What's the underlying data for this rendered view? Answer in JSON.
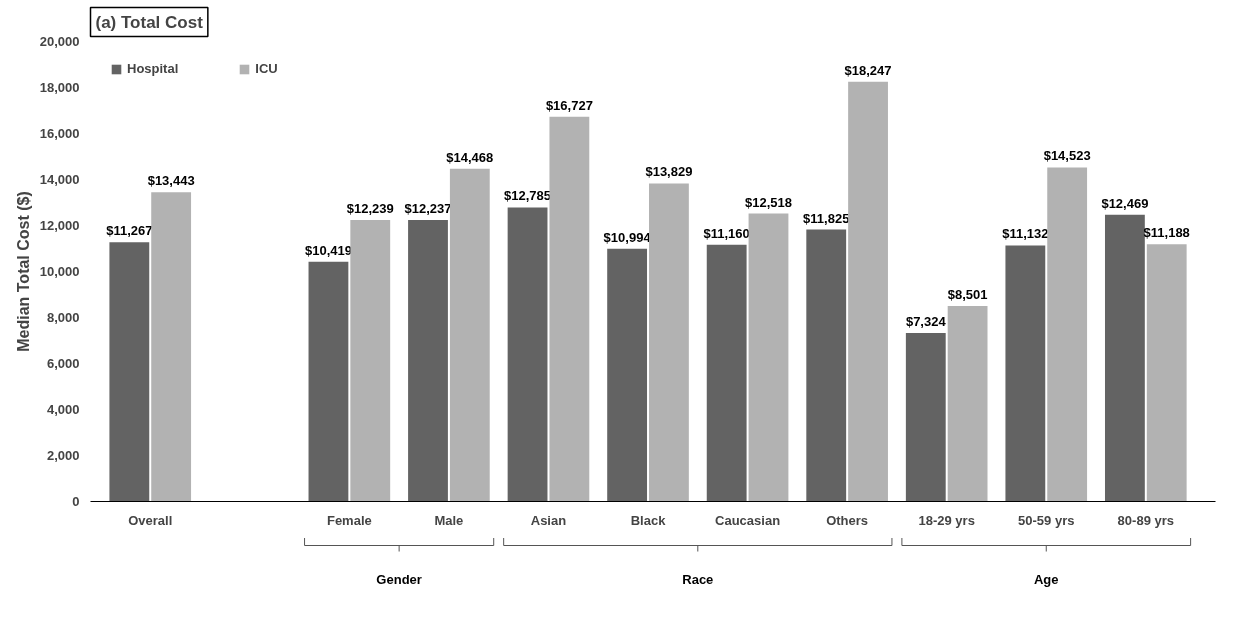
{
  "chart_data": {
    "type": "bar",
    "title": "(a) Total Cost",
    "ylabel": "Median Total Cost ($)",
    "categories": [
      "Overall",
      null,
      "Female",
      "Male",
      "Asian",
      "Black",
      "Caucasian",
      "Others",
      "18-29 yrs",
      "50-59 yrs",
      "80-89 yrs"
    ],
    "series": [
      {
        "name": "Hospital",
        "color": "#636363",
        "values": [
          11267,
          null,
          10419,
          12237,
          12785,
          10994,
          11160,
          11825,
          7324,
          11132,
          12469
        ],
        "value_labels": [
          "$11,267",
          null,
          "$10,419",
          "$12,237",
          "$12,785",
          "$10,994",
          "$11,160",
          "$11,825",
          "$7,324",
          "$11,132",
          "$12,469"
        ]
      },
      {
        "name": "ICU",
        "color": "#b2b2b2",
        "values": [
          13443,
          null,
          12239,
          14468,
          16727,
          13829,
          12518,
          18247,
          8501,
          14523,
          11188
        ],
        "value_labels": [
          "$13,443",
          null,
          "$12,239",
          "$14,468",
          "$16,727",
          "$13,829",
          "$12,518",
          "$18,247",
          "$8,501",
          "$14,523",
          "$11,188"
        ]
      }
    ],
    "ylim": [
      0,
      20000
    ],
    "yticks": [
      0,
      {
        "value": 2000,
        "label": "2,000"
      },
      {
        "value": 4000,
        "label": "4,000"
      },
      {
        "value": 6000,
        "label": "6,000"
      },
      {
        "value": 8000,
        "label": "8,000"
      },
      {
        "value": 10000,
        "label": "10,000"
      },
      {
        "value": 12000,
        "label": "12,000"
      },
      {
        "value": 14000,
        "label": "14,000"
      },
      {
        "value": 16000,
        "label": "16,000"
      },
      {
        "value": 18000,
        "label": "18,000"
      },
      {
        "value": 20000,
        "label": "20,000"
      }
    ],
    "annotations": [
      "Gender",
      "Race",
      "Age"
    ],
    "grid": false,
    "legend": "top left"
  }
}
